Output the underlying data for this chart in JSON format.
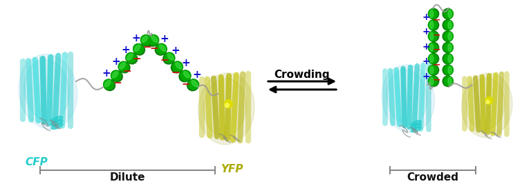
{
  "bg_color": "#ffffff",
  "crowding_label": "Crowding",
  "dilute_label": "Dilute",
  "crowded_label": "Crowded",
  "cfp_label": "CFP",
  "yfp_label": "YFP",
  "cfp_color": "#29d4d4",
  "yfp_color": "#b8b800",
  "helix_color": "#00aa00",
  "helix_highlight": "#44dd44",
  "helix_shadow": "#007700",
  "plus_color": "#1111cc",
  "minus_color": "#cc1111",
  "label_color_cfp": "#22cccc",
  "label_color_yfp": "#aaaa00",
  "label_color_black": "#111111",
  "bracket_color": "#888888",
  "loop_color": "#999999",
  "strand_color_cfp": "#aaeeff",
  "strand_color_yfp": "#dddd88"
}
